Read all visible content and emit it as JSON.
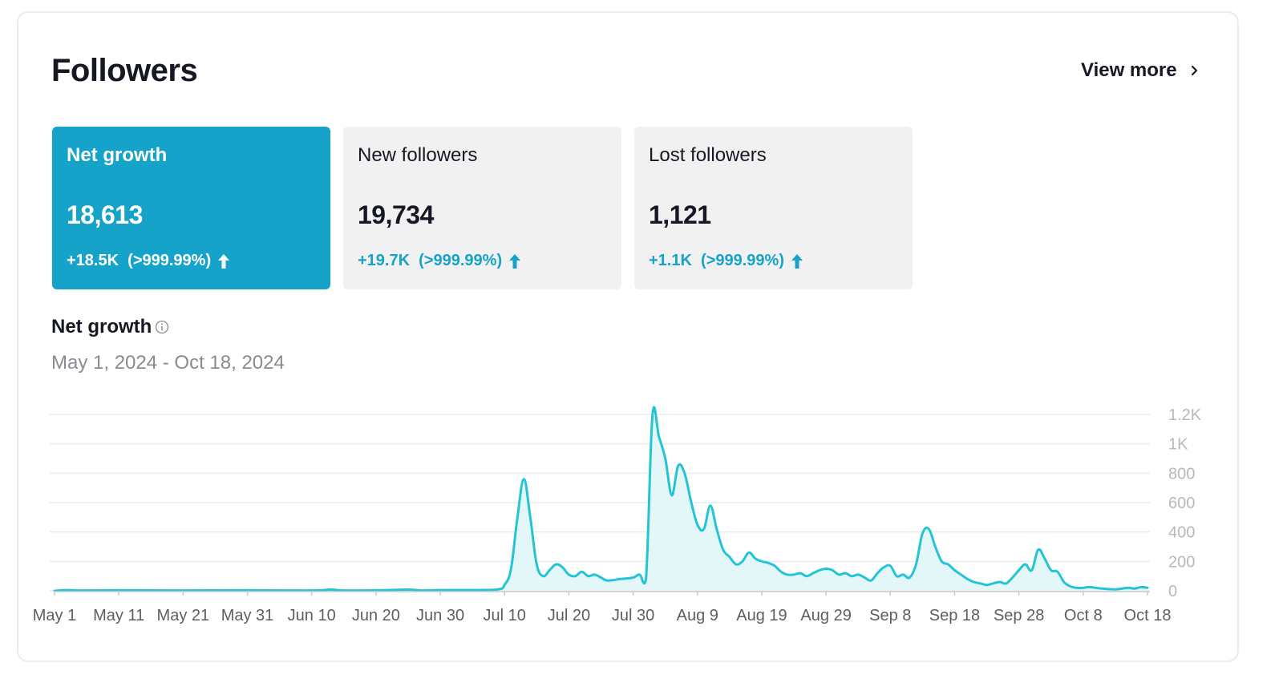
{
  "header": {
    "title": "Followers",
    "view_more": "View more"
  },
  "metrics": [
    {
      "label": "Net growth",
      "value": "18,613",
      "change": "+18.5K  (>999.99%)",
      "active": true
    },
    {
      "label": "New followers",
      "value": "19,734",
      "change": "+19.7K  (>999.99%)",
      "active": false
    },
    {
      "label": "Lost followers",
      "value": "1,121",
      "change": "+1.1K  (>999.99%)",
      "active": false
    }
  ],
  "chart_section": {
    "title": "Net growth",
    "date_range": "May 1, 2024 - Oct 18, 2024"
  },
  "colors": {
    "accent": "#16a3c9",
    "line": "#22c4d6",
    "area": "#e3f6f8"
  },
  "chart_data": {
    "type": "area",
    "title": "",
    "xlabel": "",
    "ylabel": "",
    "ylim": [
      0,
      1200
    ],
    "y_ticks": [
      "0",
      "200",
      "400",
      "600",
      "800",
      "1K",
      "1.2K"
    ],
    "y_tick_values": [
      0,
      200,
      400,
      600,
      800,
      1000,
      1200
    ],
    "x_ticks": [
      "May 1",
      "May 11",
      "May 21",
      "May 31",
      "Jun 10",
      "Jun 20",
      "Jun 30",
      "Jul 10",
      "Jul 20",
      "Jul 30",
      "Aug 9",
      "Aug 19",
      "Aug 29",
      "Sep 8",
      "Sep 18",
      "Sep 28",
      "Oct 8",
      "Oct 18"
    ],
    "grid": true,
    "x_start": "2024-05-01",
    "series": [
      {
        "points": [
          [
            "2024-05-01",
            0
          ],
          [
            "2024-05-03",
            5
          ],
          [
            "2024-05-05",
            2
          ],
          [
            "2024-05-11",
            3
          ],
          [
            "2024-05-21",
            2
          ],
          [
            "2024-05-31",
            3
          ],
          [
            "2024-06-10",
            2
          ],
          [
            "2024-06-13",
            8
          ],
          [
            "2024-06-15",
            2
          ],
          [
            "2024-06-20",
            3
          ],
          [
            "2024-06-25",
            8
          ],
          [
            "2024-06-27",
            2
          ],
          [
            "2024-06-30",
            5
          ],
          [
            "2024-07-05",
            5
          ],
          [
            "2024-07-09",
            10
          ],
          [
            "2024-07-10",
            40
          ],
          [
            "2024-07-11",
            150
          ],
          [
            "2024-07-12",
            500
          ],
          [
            "2024-07-13",
            760
          ],
          [
            "2024-07-14",
            500
          ],
          [
            "2024-07-15",
            180
          ],
          [
            "2024-07-16",
            100
          ],
          [
            "2024-07-17",
            140
          ],
          [
            "2024-07-18",
            180
          ],
          [
            "2024-07-19",
            160
          ],
          [
            "2024-07-20",
            110
          ],
          [
            "2024-07-21",
            100
          ],
          [
            "2024-07-22",
            130
          ],
          [
            "2024-07-23",
            100
          ],
          [
            "2024-07-24",
            110
          ],
          [
            "2024-07-25",
            90
          ],
          [
            "2024-07-26",
            70
          ],
          [
            "2024-07-28",
            80
          ],
          [
            "2024-07-30",
            90
          ],
          [
            "2024-07-31",
            110
          ],
          [
            "2024-08-01",
            80
          ],
          [
            "2024-08-02",
            1190
          ],
          [
            "2024-08-03",
            1050
          ],
          [
            "2024-08-04",
            900
          ],
          [
            "2024-08-05",
            650
          ],
          [
            "2024-08-06",
            850
          ],
          [
            "2024-08-07",
            800
          ],
          [
            "2024-08-08",
            610
          ],
          [
            "2024-08-09",
            450
          ],
          [
            "2024-08-10",
            420
          ],
          [
            "2024-08-11",
            580
          ],
          [
            "2024-08-12",
            420
          ],
          [
            "2024-08-13",
            280
          ],
          [
            "2024-08-14",
            230
          ],
          [
            "2024-08-15",
            180
          ],
          [
            "2024-08-16",
            200
          ],
          [
            "2024-08-17",
            260
          ],
          [
            "2024-08-18",
            220
          ],
          [
            "2024-08-19",
            200
          ],
          [
            "2024-08-20",
            190
          ],
          [
            "2024-08-21",
            170
          ],
          [
            "2024-08-22",
            130
          ],
          [
            "2024-08-23",
            110
          ],
          [
            "2024-08-24",
            110
          ],
          [
            "2024-08-25",
            120
          ],
          [
            "2024-08-26",
            100
          ],
          [
            "2024-08-27",
            120
          ],
          [
            "2024-08-28",
            140
          ],
          [
            "2024-08-29",
            150
          ],
          [
            "2024-08-30",
            140
          ],
          [
            "2024-08-31",
            110
          ],
          [
            "2024-09-01",
            120
          ],
          [
            "2024-09-02",
            100
          ],
          [
            "2024-09-03",
            110
          ],
          [
            "2024-09-04",
            90
          ],
          [
            "2024-09-05",
            70
          ],
          [
            "2024-09-06",
            120
          ],
          [
            "2024-09-07",
            160
          ],
          [
            "2024-09-08",
            170
          ],
          [
            "2024-09-09",
            100
          ],
          [
            "2024-09-10",
            110
          ],
          [
            "2024-09-11",
            90
          ],
          [
            "2024-09-12",
            180
          ],
          [
            "2024-09-13",
            390
          ],
          [
            "2024-09-14",
            420
          ],
          [
            "2024-09-15",
            300
          ],
          [
            "2024-09-16",
            200
          ],
          [
            "2024-09-17",
            180
          ],
          [
            "2024-09-18",
            140
          ],
          [
            "2024-09-19",
            110
          ],
          [
            "2024-09-20",
            80
          ],
          [
            "2024-09-21",
            60
          ],
          [
            "2024-09-22",
            50
          ],
          [
            "2024-09-23",
            40
          ],
          [
            "2024-09-24",
            50
          ],
          [
            "2024-09-25",
            60
          ],
          [
            "2024-09-26",
            50
          ],
          [
            "2024-09-27",
            90
          ],
          [
            "2024-09-28",
            140
          ],
          [
            "2024-09-29",
            180
          ],
          [
            "2024-09-30",
            140
          ],
          [
            "2024-10-01",
            280
          ],
          [
            "2024-10-02",
            220
          ],
          [
            "2024-10-03",
            140
          ],
          [
            "2024-10-04",
            130
          ],
          [
            "2024-10-05",
            60
          ],
          [
            "2024-10-06",
            30
          ],
          [
            "2024-10-07",
            20
          ],
          [
            "2024-10-08",
            20
          ],
          [
            "2024-10-09",
            25
          ],
          [
            "2024-10-11",
            15
          ],
          [
            "2024-10-13",
            10
          ],
          [
            "2024-10-15",
            20
          ],
          [
            "2024-10-16",
            15
          ],
          [
            "2024-10-17",
            25
          ],
          [
            "2024-10-18",
            20
          ]
        ]
      }
    ]
  }
}
